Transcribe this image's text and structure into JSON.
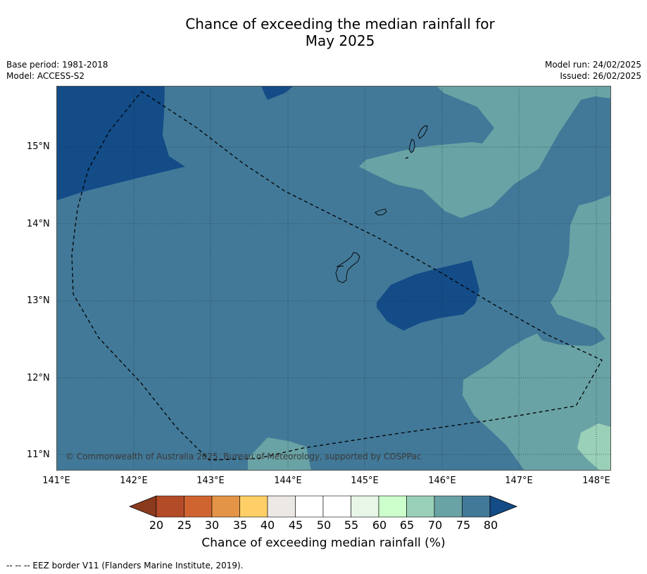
{
  "title_line1": "Chance of exceeding the median rainfall for",
  "title_line2": "May 2025",
  "meta": {
    "base_period": "Base period: 1981-2018",
    "model": "Model: ACCESS-S2",
    "model_run": "Model run: 24/02/2025",
    "issued": "Issued: 26/02/2025"
  },
  "latitude_labels": [
    "15°N",
    "14°N",
    "13°N",
    "12°N",
    "11°N"
  ],
  "longitude_labels": [
    "141°E",
    "142°E",
    "143°E",
    "144°E",
    "145°E",
    "146°E",
    "147°E",
    "148°E"
  ],
  "copyright": "© Commonwealth of Australia 2025, Bureau of Meteorology, supported by COSPPac",
  "colorbar": {
    "tick_labels": [
      "20",
      "25",
      "30",
      "35",
      "40",
      "45",
      "50",
      "55",
      "60",
      "65",
      "70",
      "75",
      "80"
    ],
    "title": "Chance of exceeding median rainfall (%)",
    "colors": [
      "#8b3a1e",
      "#b44b28",
      "#cf6430",
      "#e39446",
      "#fecf66",
      "#ece8e4",
      "#ffffff",
      "#ffffff",
      "#e8f6e8",
      "#ccffcc",
      "#9bd0b8",
      "#6aa3a5",
      "#427998",
      "#134c87"
    ]
  },
  "map_colors": {
    "band_70_75": "#6aa3a5",
    "band_75_80": "#427998",
    "band_80_plus": "#134c87",
    "band_65_70": "#9bd0b8"
  },
  "footnote": "--  --  -- EEZ border V11 (Flanders Marine Institute, 2019)."
}
